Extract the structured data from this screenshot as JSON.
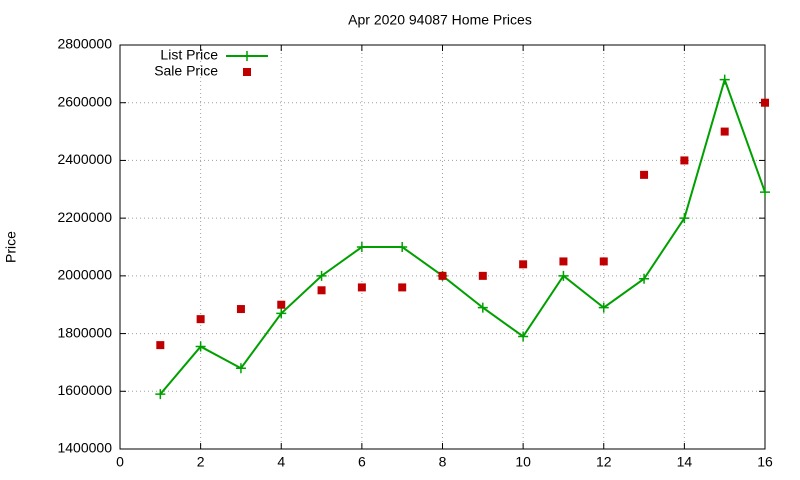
{
  "chart_data": {
    "type": "line",
    "title": "Apr 2020 94087 Home Prices",
    "y_label": "Price",
    "x": [
      1,
      2,
      3,
      4,
      5,
      6,
      7,
      8,
      9,
      10,
      11,
      12,
      13,
      14,
      15,
      16
    ],
    "series": [
      {
        "name": "List Price",
        "color": "#00a000",
        "line": true,
        "marker": "plus",
        "values": [
          1590000,
          1755000,
          1680000,
          1870000,
          2000000,
          2100000,
          2100000,
          2000000,
          1890000,
          1790000,
          2000000,
          1890000,
          1990000,
          2200000,
          2680000,
          2290000
        ]
      },
      {
        "name": "Sale Price",
        "color": "#c00000",
        "line": false,
        "marker": "square",
        "values": [
          1760000,
          1850000,
          1885000,
          1900000,
          1950000,
          1960000,
          1960000,
          2000000,
          2000000,
          2040000,
          2050000,
          2050000,
          2350000,
          2400000,
          2500000,
          2600000
        ]
      }
    ],
    "xlim": [
      0,
      16
    ],
    "xticks": [
      0,
      2,
      4,
      6,
      8,
      10,
      12,
      14,
      16
    ],
    "ylim": [
      1400000,
      2800000
    ],
    "yticks": [
      1400000,
      1600000,
      1800000,
      2000000,
      2200000,
      2400000,
      2600000,
      2800000
    ],
    "grid": true,
    "legend": "top-left"
  }
}
